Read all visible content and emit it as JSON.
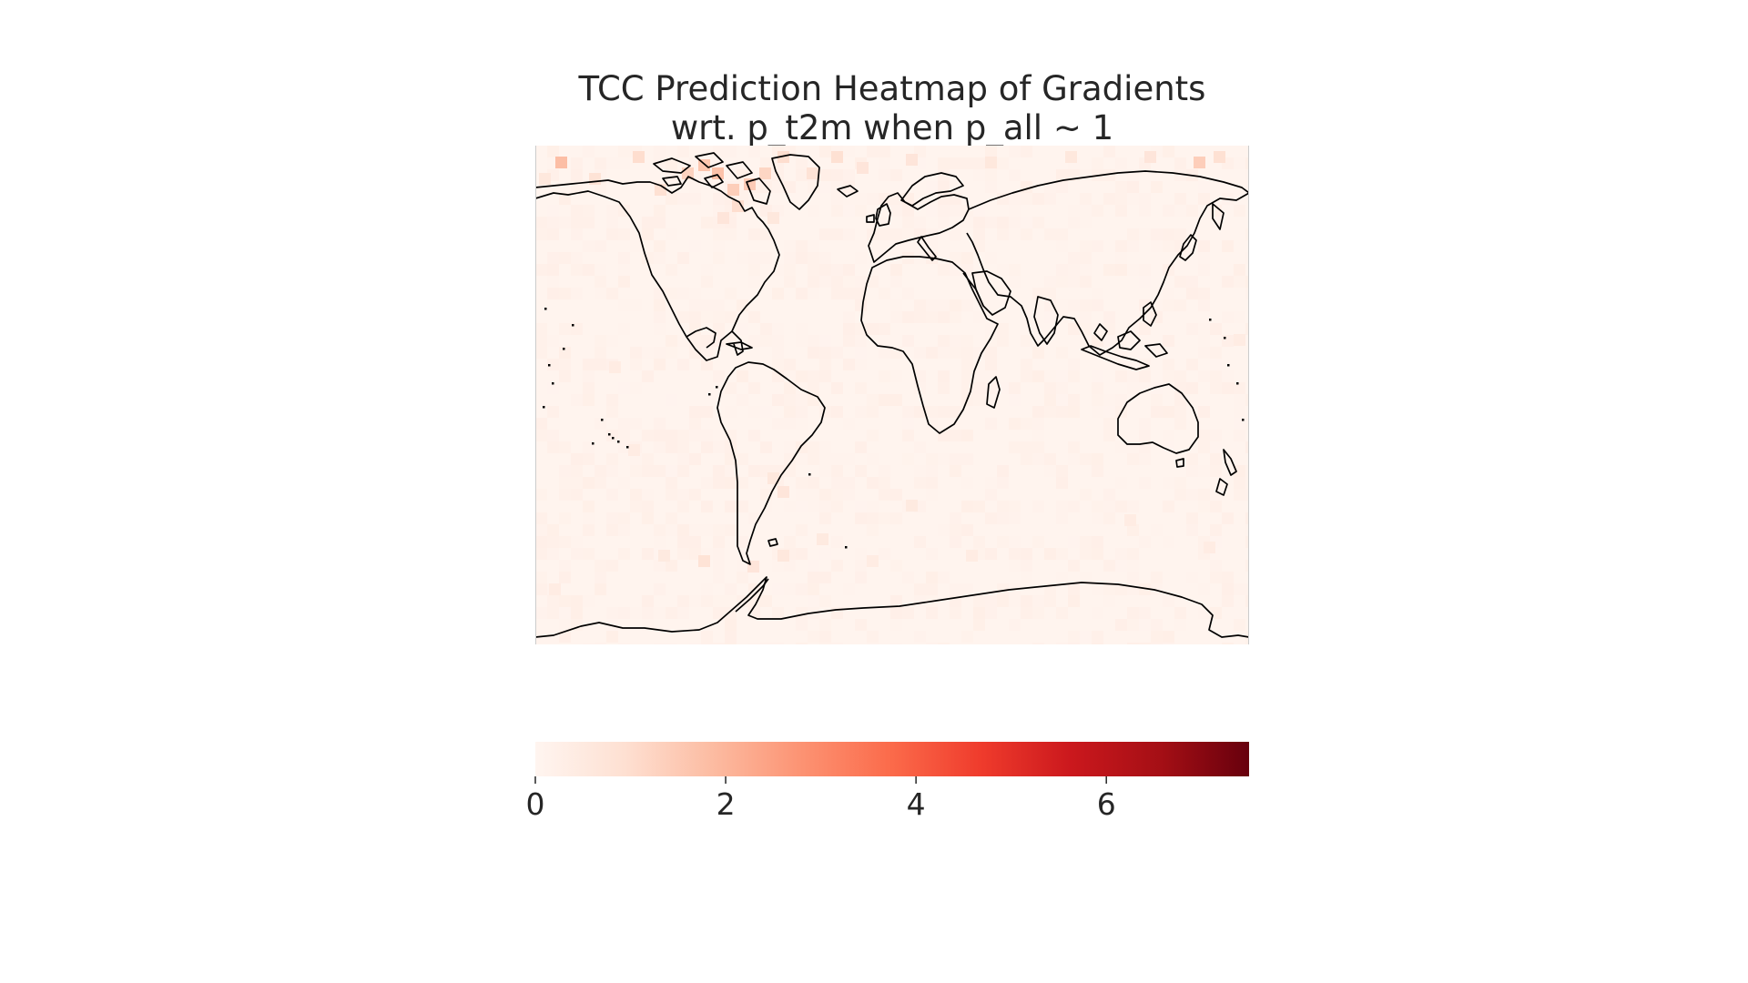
{
  "chart_data": {
    "type": "heatmap",
    "title": "TCC Prediction Heatmap of Gradients",
    "subtitle": "wrt. p_t2m when p_all ~ 1",
    "projection": "equirectangular world map with coastlines",
    "colormap": "Reds",
    "grid": false,
    "x_extent": [
      -180,
      180
    ],
    "y_extent": [
      -90,
      90
    ],
    "color_range": [
      0,
      7.5
    ],
    "colorbar": {
      "placement": "bottom",
      "ticks": [
        "0",
        "2",
        "4",
        "6"
      ],
      "tick_values": [
        0,
        2,
        4,
        6
      ]
    },
    "hot_cells": [
      {
        "lon": -167,
        "lat": 84,
        "value": 1.8
      },
      {
        "lon": -128,
        "lat": 86,
        "value": 1.0
      },
      {
        "lon": -103,
        "lat": 80,
        "value": 1.3
      },
      {
        "lon": -95,
        "lat": 83,
        "value": 1.6
      },
      {
        "lon": -88,
        "lat": 80,
        "value": 1.7
      },
      {
        "lon": -80,
        "lat": 74,
        "value": 1.4
      },
      {
        "lon": -72,
        "lat": 76,
        "value": 1.5
      },
      {
        "lon": -64,
        "lat": 80,
        "value": 1.2
      },
      {
        "lon": -55,
        "lat": 86,
        "value": 1.0
      },
      {
        "lon": -40,
        "lat": 80,
        "value": 0.8
      },
      {
        "lon": -28,
        "lat": 86,
        "value": 0.9
      },
      {
        "lon": -15,
        "lat": 82,
        "value": 0.7
      },
      {
        "lon": 10,
        "lat": 85,
        "value": 0.7
      },
      {
        "lon": 50,
        "lat": 84,
        "value": 0.6
      },
      {
        "lon": 90,
        "lat": 86,
        "value": 0.6
      },
      {
        "lon": 130,
        "lat": 86,
        "value": 0.7
      },
      {
        "lon": 155,
        "lat": 84,
        "value": 1.4
      },
      {
        "lon": 165,
        "lat": 86,
        "value": 0.9
      },
      {
        "lon": -150,
        "lat": 78,
        "value": 0.8
      },
      {
        "lon": -175,
        "lat": 78,
        "value": 0.6
      },
      {
        "lon": -117,
        "lat": 74,
        "value": 0.9
      },
      {
        "lon": -78,
        "lat": 68,
        "value": 1.0
      },
      {
        "lon": -85,
        "lat": 64,
        "value": 0.7
      },
      {
        "lon": -60,
        "lat": 64,
        "value": 0.6
      },
      {
        "lon": -60,
        "lat": -30,
        "value": 0.6
      },
      {
        "lon": -55,
        "lat": -35,
        "value": 0.7
      },
      {
        "lon": 10,
        "lat": -40,
        "value": 0.5
      },
      {
        "lon": -35,
        "lat": -52,
        "value": 0.5
      },
      {
        "lon": -115,
        "lat": -58,
        "value": 0.5
      },
      {
        "lon": -95,
        "lat": -60,
        "value": 0.8
      },
      {
        "lon": -70,
        "lat": -62,
        "value": 0.7
      },
      {
        "lon": -55,
        "lat": -58,
        "value": 0.6
      },
      {
        "lon": -10,
        "lat": -60,
        "value": 0.4
      },
      {
        "lon": 40,
        "lat": -58,
        "value": 0.4
      },
      {
        "lon": 120,
        "lat": -45,
        "value": 0.4
      },
      {
        "lon": 160,
        "lat": -55,
        "value": 0.4
      },
      {
        "lon": -140,
        "lat": 10,
        "value": 0.4
      },
      {
        "lon": -130,
        "lat": -20,
        "value": 0.4
      },
      {
        "lon": 175,
        "lat": 20,
        "value": 0.4
      },
      {
        "lon": -170,
        "lat": -70,
        "value": 0.4
      }
    ]
  }
}
